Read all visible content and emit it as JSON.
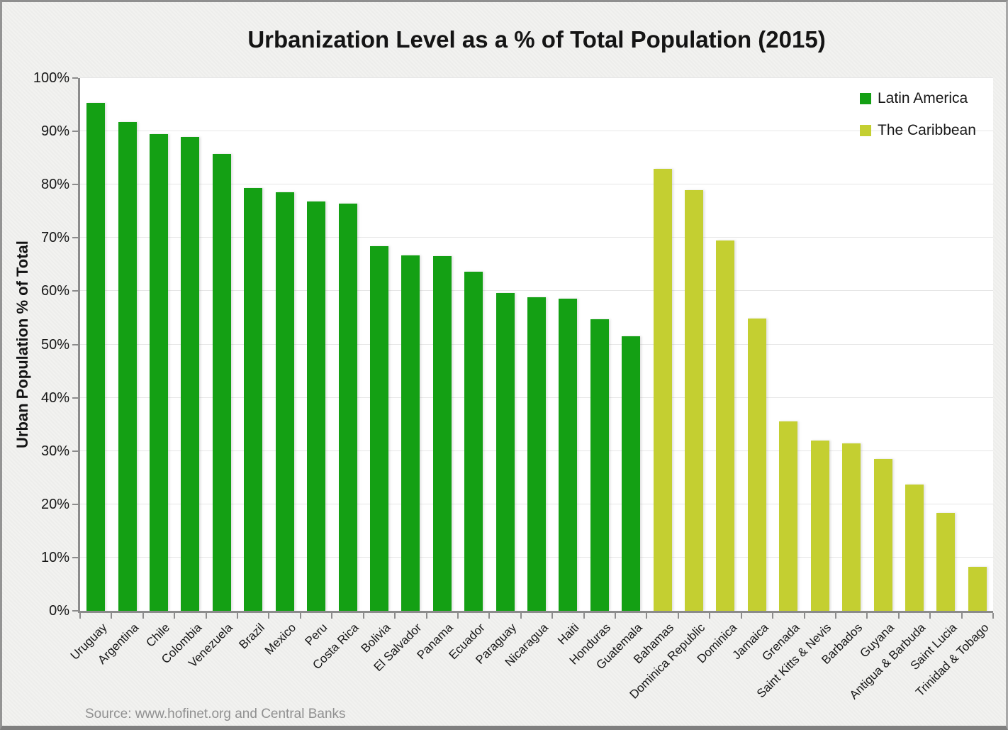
{
  "title": "Urbanization Level as a % of Total Population (2015)",
  "source_note": "Source: www.hofinet.org and Central Banks",
  "y_axis": {
    "title": "Urban Population % of Total",
    "min": 0,
    "max": 100,
    "step": 10,
    "tick_labels": [
      "0%",
      "10%",
      "20%",
      "30%",
      "40%",
      "50%",
      "60%",
      "70%",
      "80%",
      "90%",
      "100%"
    ]
  },
  "colors": {
    "latin_america": "#14A014",
    "caribbean": "#C4CF31",
    "gridline": "#E6E6E6",
    "axis": "#8C8C8C",
    "plot_background": "#FFFFFF",
    "slide_background": "#F2F2F0",
    "title_text": "#141414",
    "source_text": "#909090"
  },
  "chart_data": {
    "type": "bar",
    "title": "Urbanization Level as a % of Total Population (2015)",
    "xlabel": "",
    "ylabel": "Urban Population % of Total",
    "ylim": [
      0,
      100
    ],
    "grid": true,
    "legend_position": "top-right",
    "series": [
      {
        "name": "Latin America",
        "color": "#14A014",
        "points": [
          {
            "label": "Uruguay",
            "value": 95.3
          },
          {
            "label": "Argentina",
            "value": 91.8
          },
          {
            "label": "Chile",
            "value": 89.5
          },
          {
            "label": "Colombia",
            "value": 89.0
          },
          {
            "label": "Venezuela",
            "value": 85.7
          },
          {
            "label": "Brazil",
            "value": 79.3
          },
          {
            "label": "Mexico",
            "value": 78.6
          },
          {
            "label": "Peru",
            "value": 76.8
          },
          {
            "label": "Costa Rica",
            "value": 76.4
          },
          {
            "label": "Bolivia",
            "value": 68.4
          },
          {
            "label": "El Salvador",
            "value": 66.7
          },
          {
            "label": "Panama",
            "value": 66.6
          },
          {
            "label": "Ecuador",
            "value": 63.7
          },
          {
            "label": "Paraguay",
            "value": 59.7
          },
          {
            "label": "Nicaragua",
            "value": 58.8
          },
          {
            "label": "Haiti",
            "value": 58.6
          },
          {
            "label": "Honduras",
            "value": 54.7
          },
          {
            "label": "Guatemala",
            "value": 51.5
          }
        ]
      },
      {
        "name": "The Caribbean",
        "color": "#C4CF31",
        "points": [
          {
            "label": "Bahamas",
            "value": 82.9
          },
          {
            "label": "Dominica Republic",
            "value": 79.0
          },
          {
            "label": "Dominica",
            "value": 69.5
          },
          {
            "label": "Jamaica",
            "value": 54.8
          },
          {
            "label": "Grenada",
            "value": 35.5
          },
          {
            "label": "Saint Kitts & Nevis",
            "value": 32.0
          },
          {
            "label": "Barbados",
            "value": 31.4
          },
          {
            "label": "Guyana",
            "value": 28.5
          },
          {
            "label": "Antigua & Barbuda",
            "value": 23.7
          },
          {
            "label": "Saint Lucia",
            "value": 18.4
          },
          {
            "label": "Trinidad & Tobago",
            "value": 8.3
          }
        ]
      }
    ]
  }
}
